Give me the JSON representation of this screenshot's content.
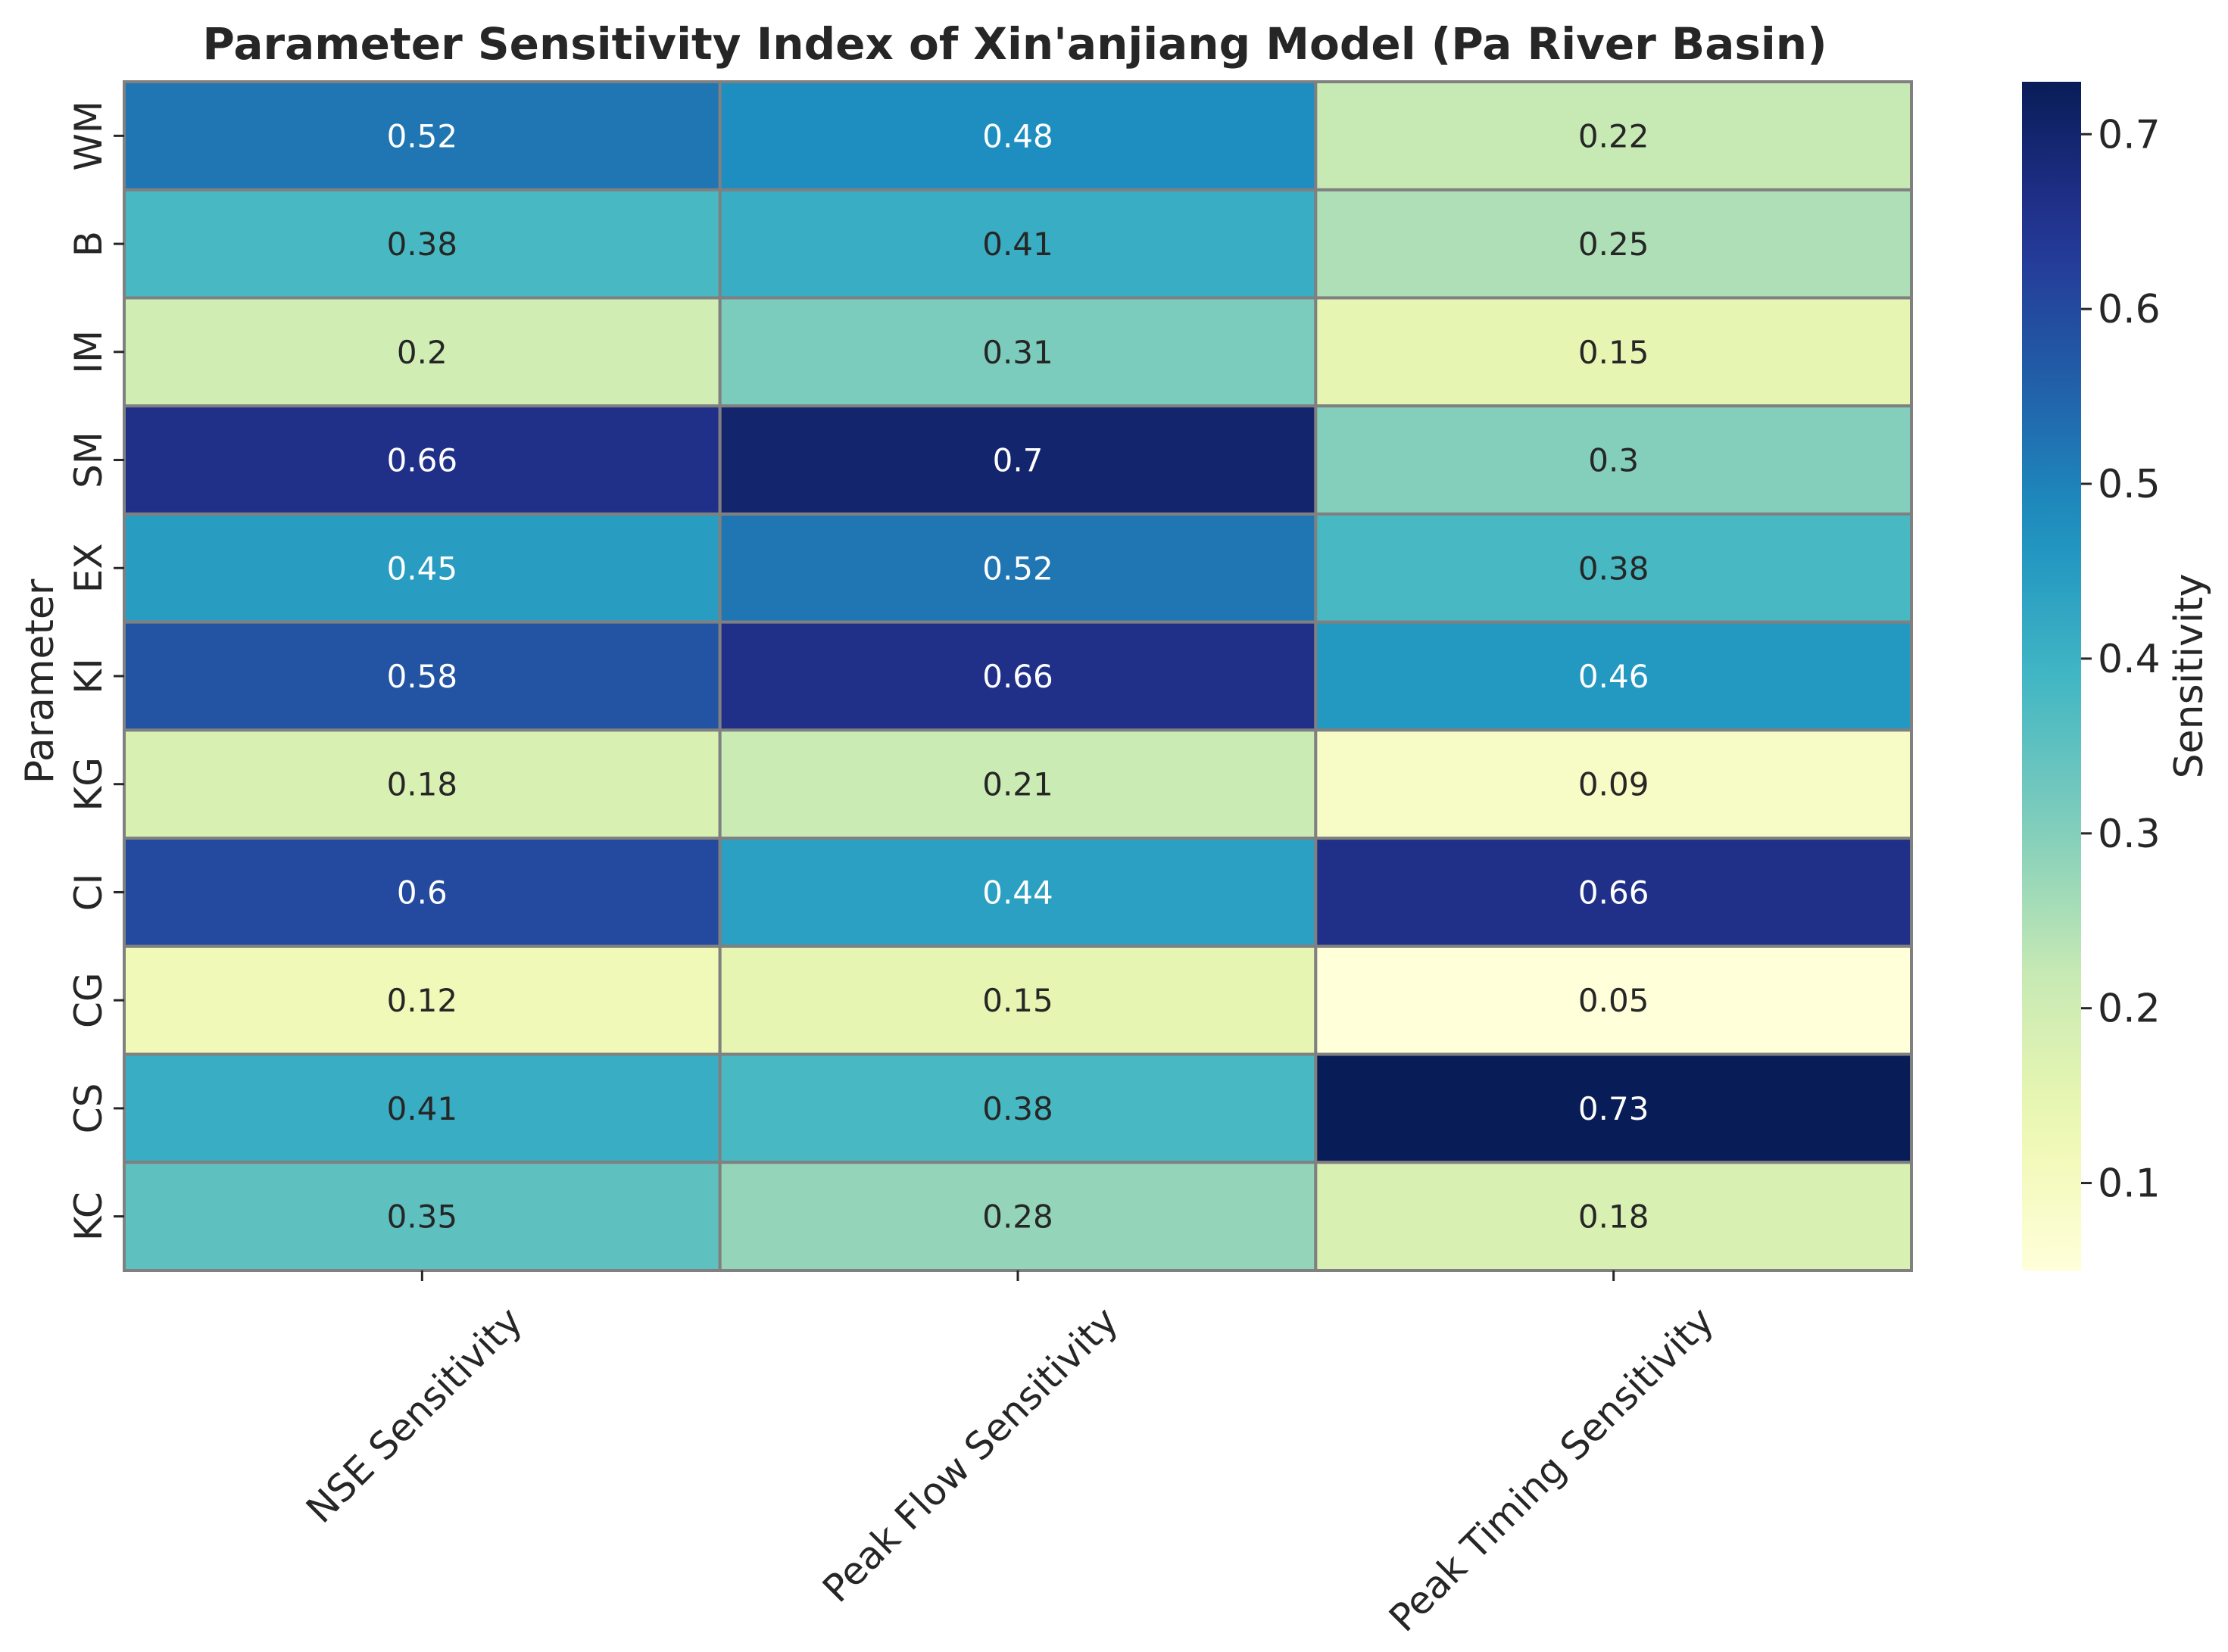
{
  "chart_data": {
    "type": "heatmap",
    "title": "Parameter Sensitivity Index of Xin'anjiang Model (Pa River Basin)",
    "ylabel": "Parameter",
    "xlabel": "",
    "rows": [
      "WM",
      "B",
      "IM",
      "SM",
      "EX",
      "KI",
      "KG",
      "CI",
      "CG",
      "CS",
      "KC"
    ],
    "columns": [
      "NSE Sensitivity",
      "Peak Flow Sensitivity",
      "Peak Timing Sensitivity"
    ],
    "values": [
      [
        0.52,
        0.48,
        0.22
      ],
      [
        0.38,
        0.41,
        0.25
      ],
      [
        0.2,
        0.31,
        0.15
      ],
      [
        0.66,
        0.7,
        0.3
      ],
      [
        0.45,
        0.52,
        0.38
      ],
      [
        0.58,
        0.66,
        0.46
      ],
      [
        0.18,
        0.21,
        0.09
      ],
      [
        0.6,
        0.44,
        0.66
      ],
      [
        0.12,
        0.15,
        0.05
      ],
      [
        0.41,
        0.38,
        0.73
      ],
      [
        0.35,
        0.28,
        0.18
      ]
    ],
    "colormap": "YlGnBu",
    "vmin": 0.05,
    "vmax": 0.73,
    "colorbar": {
      "label": "Sensitivity",
      "ticks": [
        0.1,
        0.2,
        0.3,
        0.4,
        0.5,
        0.6,
        0.7
      ]
    }
  }
}
